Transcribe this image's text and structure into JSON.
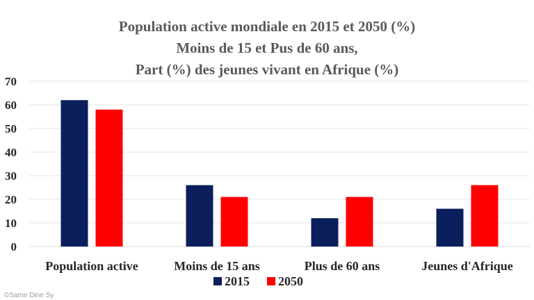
{
  "chart_data": {
    "type": "bar",
    "title": [
      "Population active mondiale en 2015 et 2050 (%)",
      "Moins de 15 et Pus de 60 ans,",
      "Part (%) des jeunes vivant en Afrique (%)"
    ],
    "categories": [
      "Population active",
      "Moins de 15 ans",
      "Plus de 60 ans",
      "Jeunes d'Afrique"
    ],
    "series": [
      {
        "name": "2015",
        "color": "#0b1f5c",
        "values": [
          62,
          26,
          12,
          16
        ]
      },
      {
        "name": "2050",
        "color": "#ff0000",
        "values": [
          58,
          21,
          21,
          26
        ]
      }
    ],
    "xlabel": "",
    "ylabel": "",
    "ylim": [
      0,
      70
    ],
    "yticks": [
      0,
      10,
      20,
      30,
      40,
      50,
      60,
      70
    ],
    "grid": true,
    "legend_position": "bottom"
  },
  "watermark": "©Samir Dine Sy"
}
